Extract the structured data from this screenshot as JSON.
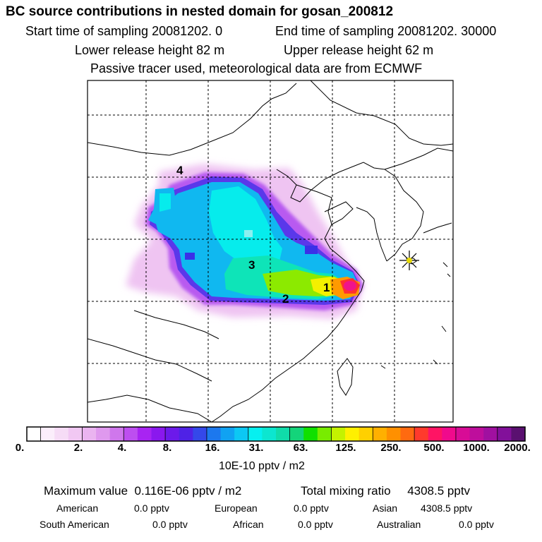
{
  "header": {
    "title": "BC  source contributions in nested domain for gosan_200812",
    "start_label": "Start time of sampling 20081202.     0",
    "end_label": "End time of sampling 20081202. 30000",
    "lower_label": "Lower release height   82 m",
    "upper_label": "Upper release height   62 m",
    "tracer_note": "Passive tracer used, meteorological data are from ECMWF"
  },
  "map": {
    "region_labels": [
      "1",
      "2",
      "3",
      "4"
    ],
    "marker": "receptor-star"
  },
  "colorbar": {
    "colors": [
      "#ffffff",
      "#fbeefb",
      "#f6dcf6",
      "#f1c8f3",
      "#eab4f0",
      "#df99ee",
      "#cf77ec",
      "#bd4ef0",
      "#a824f2",
      "#8a18ee",
      "#6c1aea",
      "#4f22e6",
      "#3448ea",
      "#1c78ee",
      "#10a2f2",
      "#0cc8f4",
      "#06f0f0",
      "#0ce6d0",
      "#10dcaa",
      "#14d47a",
      "#10e000",
      "#78ec00",
      "#c4f200",
      "#fff000",
      "#ffd000",
      "#ffb000",
      "#ff9000",
      "#ff6a10",
      "#ff3a2c",
      "#ff1464",
      "#f00a8c",
      "#d80c96",
      "#be0e9c",
      "#a010a0",
      "#82109a",
      "#5a1070"
    ],
    "tick_labels": [
      "0.",
      "2.",
      "4.",
      "8.",
      "16.",
      "31.",
      "63.",
      "125.",
      "250.",
      "500.",
      "1000.",
      "2000."
    ],
    "units": "10E-10 pptv / m2"
  },
  "stats": {
    "max_label": "Maximum value",
    "max_value": "0.116E-06 pptv / m2",
    "total_label": "Total mixing ratio",
    "total_value": "4308.5 pptv",
    "regions": [
      {
        "name": "American",
        "value": "0.0 pptv"
      },
      {
        "name": "European",
        "value": "0.0 pptv"
      },
      {
        "name": "Asian",
        "value": "4308.5 pptv"
      },
      {
        "name": "South American",
        "value": "0.0 pptv"
      },
      {
        "name": "African",
        "value": "0.0 pptv"
      },
      {
        "name": "Australian",
        "value": "0.0 pptv"
      }
    ]
  }
}
